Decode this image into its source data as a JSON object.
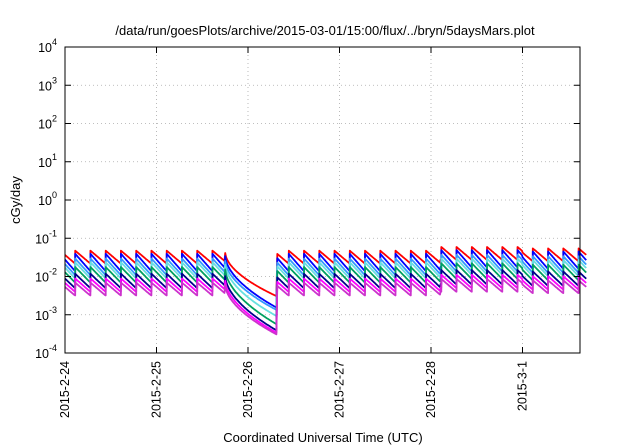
{
  "chart_data": {
    "type": "line",
    "title": "/data/run/goesPlots/archive/2015-03-01/15:00/flux/../bryn/5daysMars.plot",
    "xlabel": "Coordinated Universal Time (UTC)",
    "ylabel": "cGy/day",
    "yscale": "log",
    "ylim": [
      0.0001,
      10000
    ],
    "y_ticks": [
      {
        "base": "10",
        "exp": "-4"
      },
      {
        "base": "10",
        "exp": "-3"
      },
      {
        "base": "10",
        "exp": "-2"
      },
      {
        "base": "10",
        "exp": "-1"
      },
      {
        "base": "10",
        "exp": "0"
      },
      {
        "base": "10",
        "exp": "1"
      },
      {
        "base": "10",
        "exp": "2"
      },
      {
        "base": "10",
        "exp": "3"
      },
      {
        "base": "10",
        "exp": "4"
      }
    ],
    "xlim": [
      "2015-02-24",
      "2015-03-01 17:00"
    ],
    "x_ticks": [
      "2015-2-24",
      "2015-2-25",
      "2015-2-26",
      "2015-2-27",
      "2015-2-28",
      "2015-3-1"
    ],
    "grid": true,
    "pattern": {
      "description_hidden": "sawtooth daily pattern ~6 peaks/day, dip on 2015-2-26",
      "x_start_day": 0,
      "x_end_day": 5.7,
      "period_days": 0.1667,
      "dip_start_day": 1.75,
      "dip_end_day": 2.32
    },
    "series": [
      {
        "color": "#ff0000",
        "peak": 0.048,
        "trough": 0.022,
        "dip_end": 0.003
      },
      {
        "color": "#0000ff",
        "peak": 0.04,
        "trough": 0.014,
        "dip_end": 0.0015
      },
      {
        "color": "#3399ff",
        "peak": 0.03,
        "trough": 0.011,
        "dip_end": 0.0013
      },
      {
        "color": "#66e0e0",
        "peak": 0.024,
        "trough": 0.009,
        "dip_end": 0.0009
      },
      {
        "color": "#00a060",
        "peak": 0.018,
        "trough": 0.007,
        "dip_end": 0.00055
      },
      {
        "color": "#00008b",
        "peak": 0.012,
        "trough": 0.005,
        "dip_end": 0.00038
      },
      {
        "color": "#ff00ff",
        "peak": 0.009,
        "trough": 0.004,
        "dip_end": 0.00033
      },
      {
        "color": "#cc33cc",
        "peak": 0.007,
        "trough": 0.0032,
        "dip_end": 0.0003
      }
    ]
  }
}
